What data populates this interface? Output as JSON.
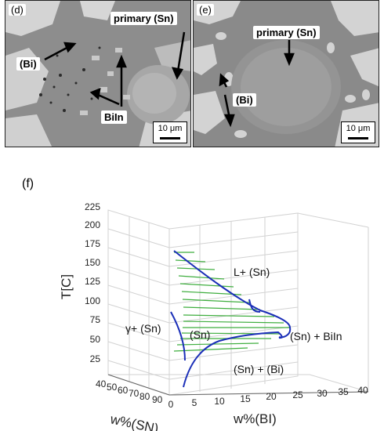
{
  "panel_d": {
    "letter": "(d)",
    "labels": {
      "primary": "primary (Sn)",
      "bi": "(Bi)",
      "biin": "BiIn"
    },
    "scale": "10 μm"
  },
  "panel_e": {
    "letter": "(e)",
    "labels": {
      "primary": "primary (Sn)",
      "bi": "(Bi)"
    },
    "scale": "10 μm"
  },
  "figure_f": {
    "letter": "(f)",
    "axes": {
      "t_label": "T[C]",
      "sn_label": "w%(SN)",
      "bi_label": "w%(BI)",
      "t_ticks": [
        "25",
        "50",
        "75",
        "100",
        "125",
        "150",
        "175",
        "200",
        "225"
      ],
      "sn_ticks": [
        "40",
        "50",
        "60",
        "70",
        "80",
        "90"
      ],
      "bi_ticks": [
        "0",
        "5",
        "10",
        "15",
        "20",
        "25",
        "30",
        "35",
        "40"
      ]
    },
    "regions": {
      "liquid_sn": "L+ (Sn)",
      "gamma_sn": "γ+ (Sn)",
      "sn": "(Sn)",
      "sn_biin": "(Sn) + BiIn",
      "sn_bi": "(Sn) + (Bi)"
    },
    "colors": {
      "boundary": "#1b2fb8",
      "tie_lines": "#3fae3f",
      "grid": "#cfcfcf"
    }
  }
}
